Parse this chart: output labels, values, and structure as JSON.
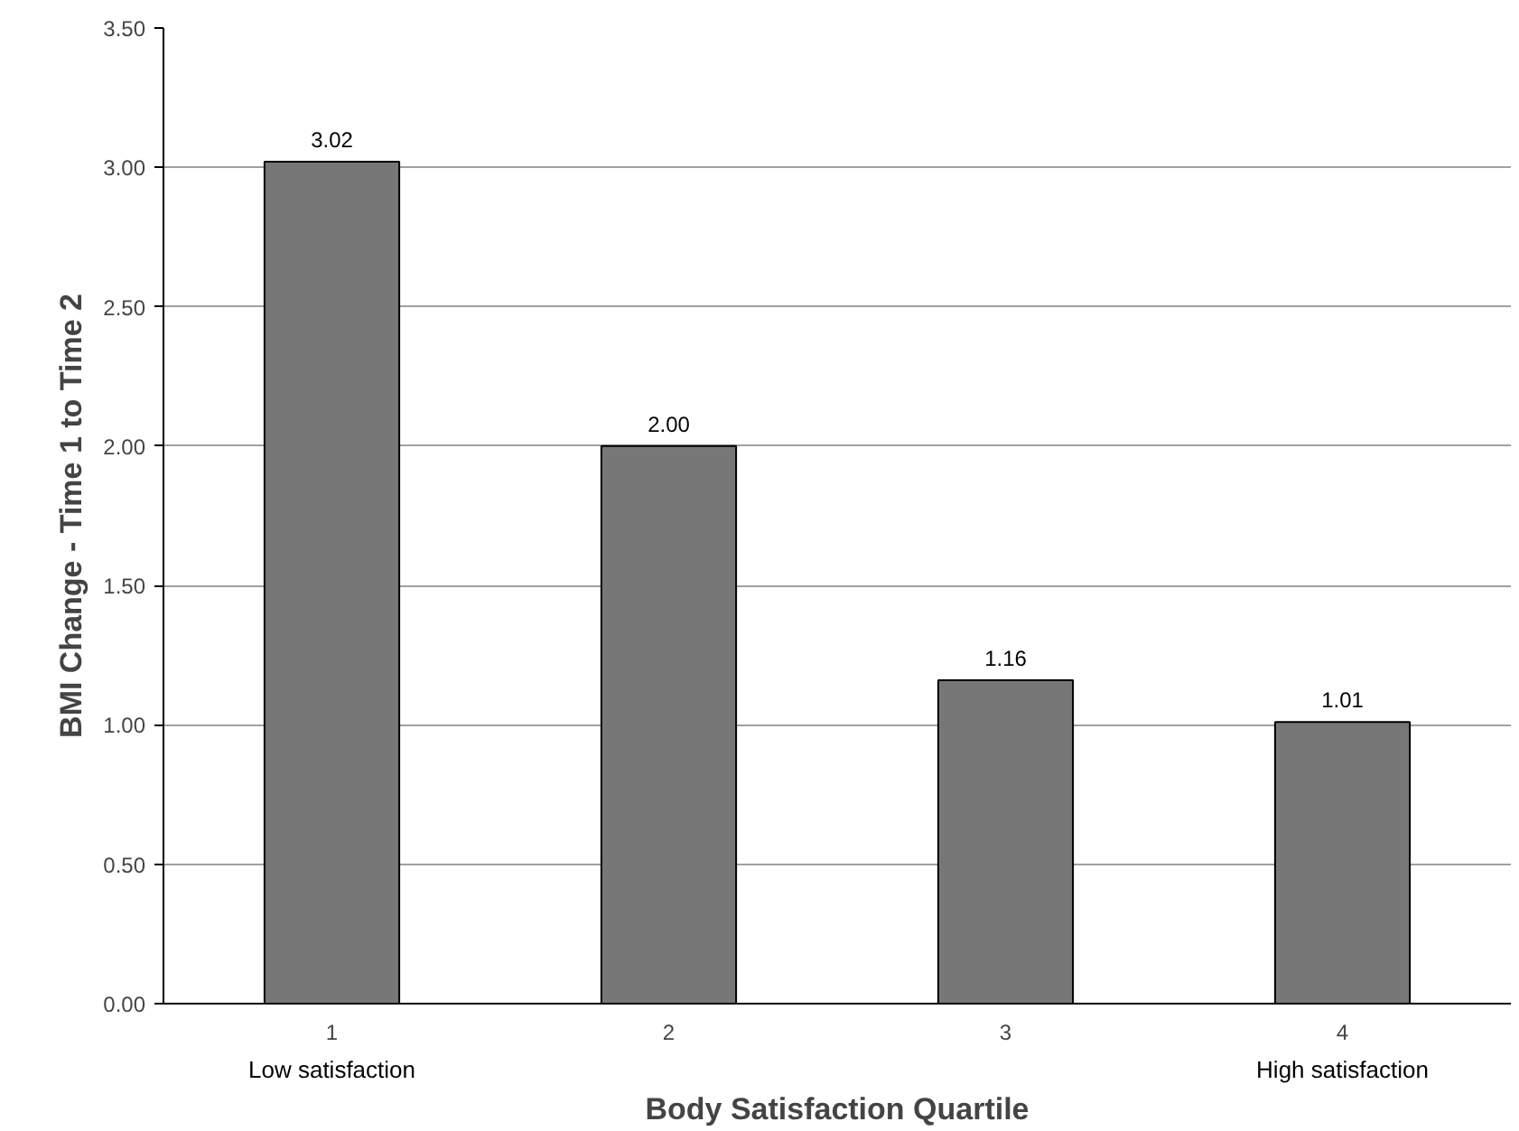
{
  "chart_data": {
    "type": "bar",
    "xlabel": "Body Satisfaction Quartile",
    "ylabel": "BMI Change - Time 1 to Time 2",
    "categories": [
      "1",
      "2",
      "3",
      "4"
    ],
    "values": [
      3.02,
      2.0,
      1.16,
      1.01
    ],
    "value_labels": [
      "3.02",
      "2.00",
      "1.16",
      "1.01"
    ],
    "color": "#777777",
    "ylim": [
      0,
      3.5
    ],
    "yticks": [
      {
        "value": 0,
        "label": "0.00"
      },
      {
        "value": 0.5,
        "label": "0.50"
      },
      {
        "value": 1,
        "label": "1.00"
      },
      {
        "value": 1.5,
        "label": "1.50"
      },
      {
        "value": 2,
        "label": "2.00"
      },
      {
        "value": 2.5,
        "label": "2.50"
      },
      {
        "value": 3,
        "label": "3.00"
      },
      {
        "value": 3.5,
        "label": "3.50"
      }
    ],
    "grid": "y",
    "annotations": [
      "Low satisfaction",
      "High satisfaction"
    ]
  }
}
